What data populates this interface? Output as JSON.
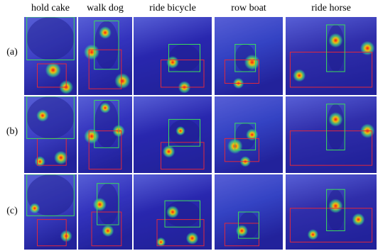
{
  "columns": [
    "hold cake",
    "walk dog",
    "ride bicycle",
    "row boat",
    "ride horse"
  ],
  "rows": [
    "(a)",
    "(b)",
    "(c)"
  ],
  "box_colors": {
    "human": "#3cdc5a",
    "object": "#e0283c"
  },
  "overlay_color": "#2020d0",
  "heat_colors": [
    "#ff1010",
    "#ffd000",
    "#40ff80"
  ]
}
